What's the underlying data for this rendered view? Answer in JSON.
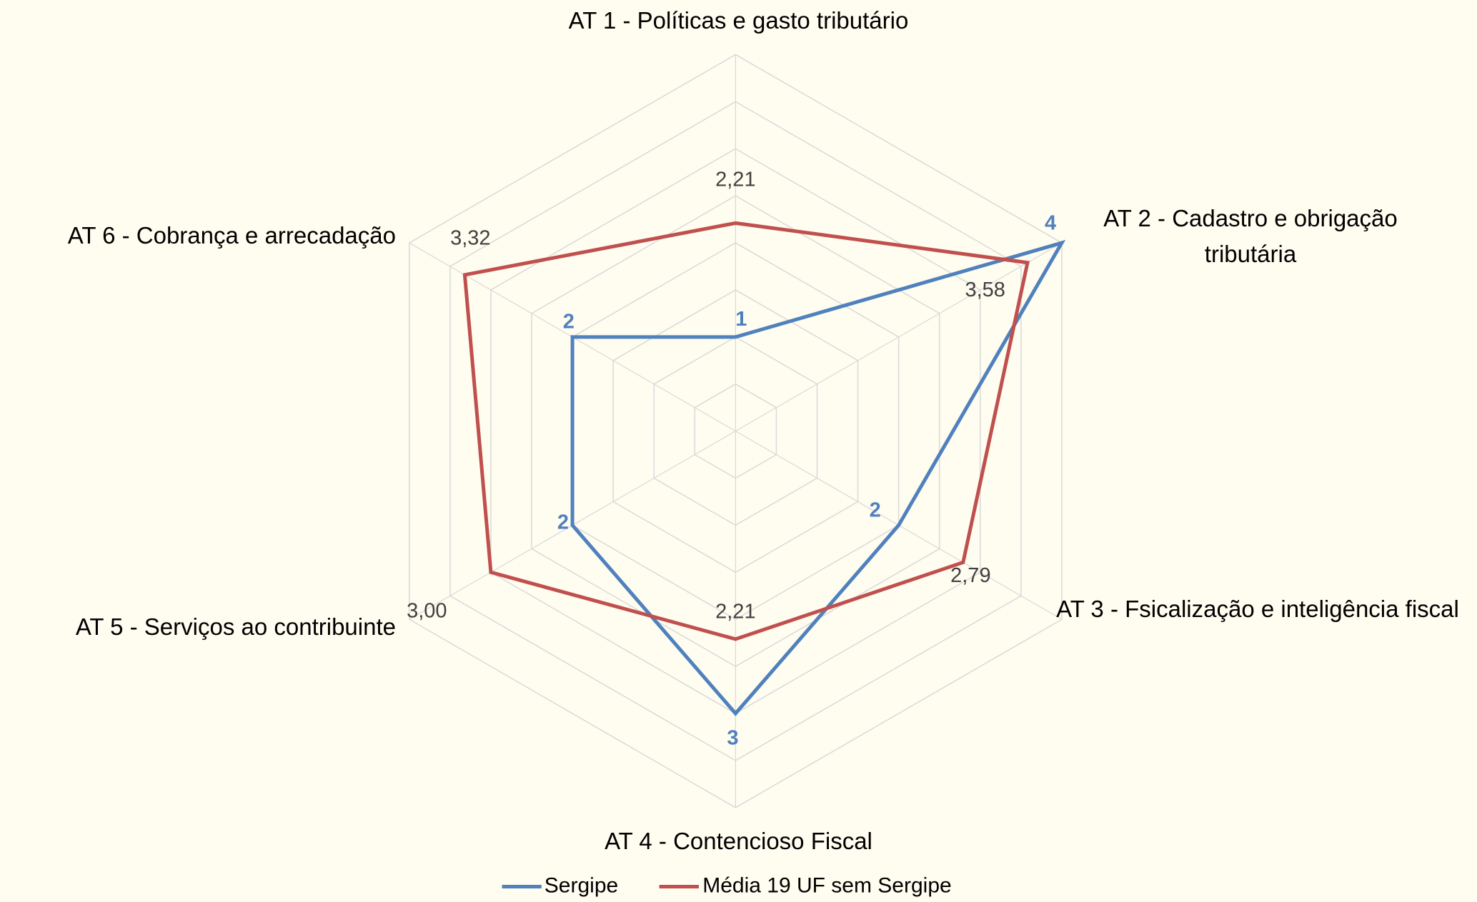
{
  "chart_data": {
    "type": "radar",
    "categories": [
      "AT 1 - Políticas e gasto tributário",
      "AT 2 - Cadastro e obrigação tributária",
      "AT 3 - Fsicalização e inteligência fiscal",
      "AT 4 - Contencioso Fiscal",
      "AT 5 - Serviços ao contribuinte",
      "AT 6 - Cobrança e arrecadação"
    ],
    "series": [
      {
        "name": "Sergipe",
        "color": "#4f81bd",
        "values": [
          1,
          4,
          2,
          3,
          2,
          2
        ]
      },
      {
        "name": "Média 19 UF sem Sergipe",
        "color": "#c0504d",
        "values": [
          2.21,
          3.58,
          2.79,
          2.21,
          3.0,
          3.32
        ],
        "value_labels": [
          "2,21",
          "3,58",
          "2,79",
          "2,21",
          "3,00",
          "3,32"
        ]
      }
    ],
    "ylim": [
      0,
      4
    ],
    "yticks": [
      0.5,
      1,
      1.5,
      2,
      2.5,
      3,
      3.5,
      4
    ],
    "tick_labels": false,
    "grid": true,
    "legend": "bottom"
  }
}
